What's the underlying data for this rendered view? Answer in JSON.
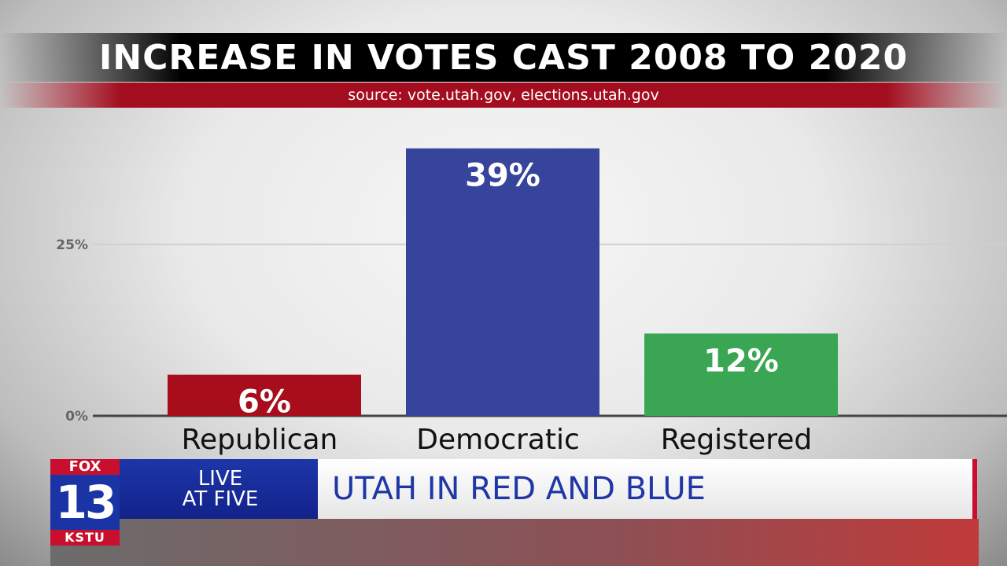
{
  "chart_data": {
    "type": "bar",
    "title": "INCREASE IN VOTES CAST 2008 TO 2020",
    "subtitle": "source: vote.utah.gov, elections.utah.gov",
    "categories": [
      "Republican",
      "Democratic",
      "Registered"
    ],
    "values": [
      6,
      39,
      12
    ],
    "data_labels": [
      "6%",
      "39%",
      "12%"
    ],
    "colors": [
      "#a80d1c",
      "#36449b",
      "#3aa654"
    ],
    "yticks": [
      {
        "value": 0,
        "label": "0%"
      },
      {
        "value": 25,
        "label": "25%"
      }
    ],
    "ylim": [
      0,
      40
    ],
    "grid": true,
    "legend": "none"
  },
  "lower_third": {
    "logo_top": "FOX",
    "logo_number": "13",
    "logo_bottom": "KSTU",
    "program_line1": "LIVE",
    "program_line2": "AT FIVE",
    "headline": "UTAH IN RED AND BLUE"
  }
}
